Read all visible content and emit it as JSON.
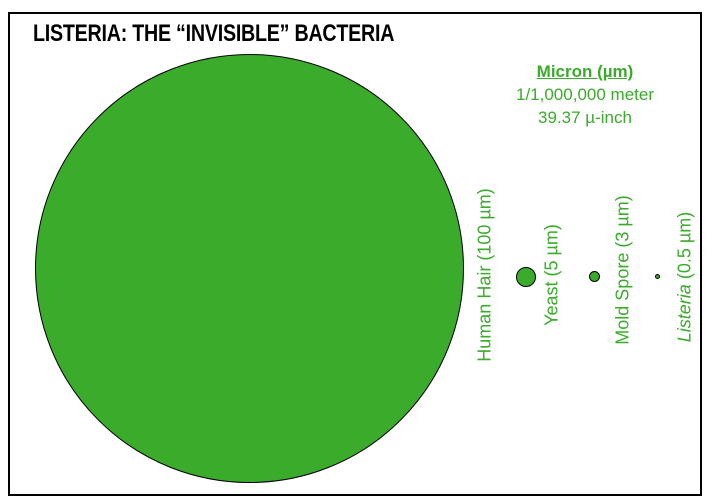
{
  "title": "LISTERIA: THE “INVISIBLE” BACTERIA",
  "unit_definition": {
    "heading": "Micron (µm)",
    "line1": "1/1,000,000 meter",
    "line2": "39.37 µ-inch"
  },
  "organisms": [
    {
      "label": "Human Hair (100 µm)",
      "size_um": 100
    },
    {
      "label": "Yeast (5 µm)",
      "size_um": 5
    },
    {
      "label": "Mold Spore (3 µm)",
      "size_um": 3
    },
    {
      "label_name": "Listeria",
      "label_rest": " (0.5 µm)",
      "size_um": 0.5
    }
  ],
  "colors": {
    "fill": "#3aab2a",
    "text_green": "#3aab2a",
    "outline": "#000000",
    "title": "#000000"
  }
}
